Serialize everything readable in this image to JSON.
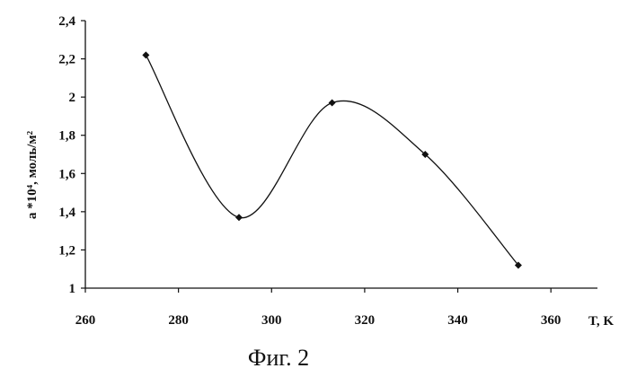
{
  "chart_data": {
    "type": "line",
    "x": [
      273,
      293,
      313,
      333,
      353
    ],
    "y": [
      2.22,
      1.37,
      1.97,
      1.7,
      1.12
    ],
    "xlim": [
      260,
      370
    ],
    "ylim": [
      1,
      2.4
    ],
    "xticks": [
      260,
      280,
      300,
      320,
      340,
      360
    ],
    "yticks": [
      1,
      1.2,
      1.4,
      1.6,
      1.8,
      2,
      2.2,
      2.4
    ],
    "xtick_labels": [
      "260",
      "280",
      "300",
      "320",
      "340",
      "360"
    ],
    "ytick_labels": [
      "1",
      "1,2",
      "1,4",
      "1,6",
      "1,8",
      "2",
      "2,2",
      "2,4"
    ],
    "xlabel": "T, K",
    "ylabel": "a *10⁴, моль/м²",
    "grid": false,
    "smooth": true,
    "marker": "diamond",
    "line_color": "#111111"
  },
  "caption": "Фиг. 2"
}
